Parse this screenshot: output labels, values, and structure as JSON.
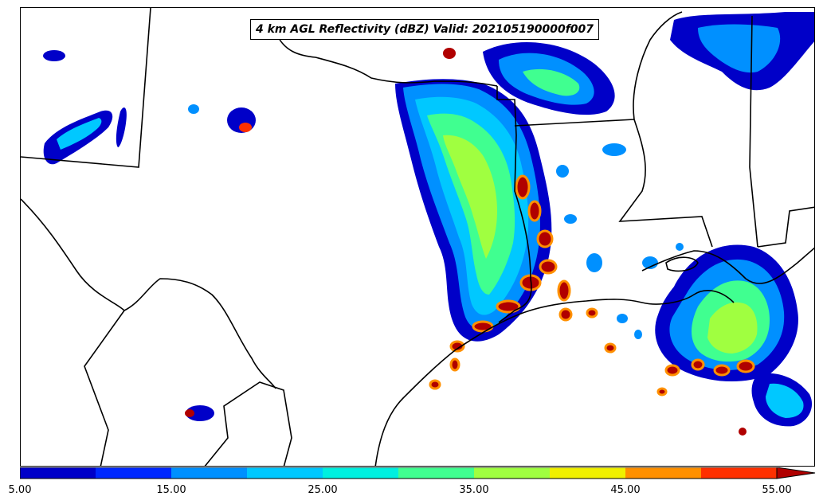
{
  "map": {
    "title": "4 km AGL Reflectivity (dBZ) Valid: 202105190000f007"
  },
  "colorbar": {
    "unit": "dBZ",
    "tick_labels": [
      "5.00",
      "15.00",
      "25.00",
      "35.00",
      "45.00",
      "55.00"
    ],
    "levels": [
      5,
      10,
      15,
      20,
      25,
      30,
      35,
      40,
      45,
      50,
      55
    ],
    "colors": [
      "#0000c8",
      "#0028ff",
      "#0090ff",
      "#00c8ff",
      "#00f0e0",
      "#40ff90",
      "#a0ff40",
      "#f0f000",
      "#ff9000",
      "#ff3000",
      "#b00000"
    ],
    "extend": "max"
  }
}
